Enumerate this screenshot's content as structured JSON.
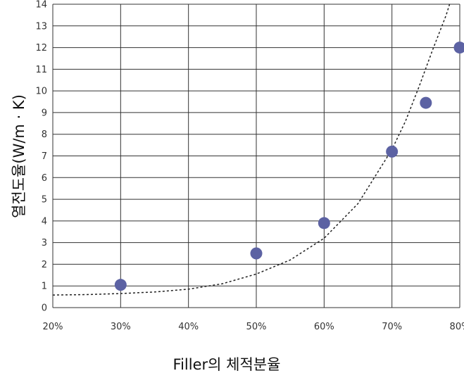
{
  "chart_data": {
    "type": "scatter",
    "xlabel": "Filler의 체적분율",
    "ylabel": "열전도율(W/m · K)",
    "xlim": [
      20,
      80
    ],
    "ylim": [
      0,
      14
    ],
    "x_ticks": [
      "20%",
      "30%",
      "40%",
      "50%",
      "60%",
      "70%",
      "80%"
    ],
    "y_ticks": [
      "0",
      "1",
      "2",
      "3",
      "4",
      "5",
      "6",
      "7",
      "8",
      "9",
      "10",
      "11",
      "12",
      "13",
      "14"
    ],
    "grid": true,
    "series": [
      {
        "x": [
          30,
          50,
          60,
          70,
          75,
          80
        ],
        "y": [
          1.05,
          2.5,
          3.9,
          7.2,
          9.45,
          12.0
        ]
      }
    ],
    "trendline": {
      "style": "dotted",
      "shape": "exponential",
      "points": [
        [
          20,
          0.58
        ],
        [
          25,
          0.6
        ],
        [
          30,
          0.65
        ],
        [
          35,
          0.72
        ],
        [
          40,
          0.85
        ],
        [
          45,
          1.1
        ],
        [
          50,
          1.55
        ],
        [
          55,
          2.2
        ],
        [
          60,
          3.2
        ],
        [
          65,
          4.8
        ],
        [
          70,
          7.3
        ],
        [
          72,
          8.6
        ],
        [
          74,
          10.2
        ],
        [
          76,
          11.9
        ],
        [
          78,
          13.5
        ],
        [
          78.5,
          14.0
        ]
      ]
    },
    "colors": {
      "marker": "#5c62a3",
      "trendline": "#222222",
      "grid": "#333333"
    }
  }
}
